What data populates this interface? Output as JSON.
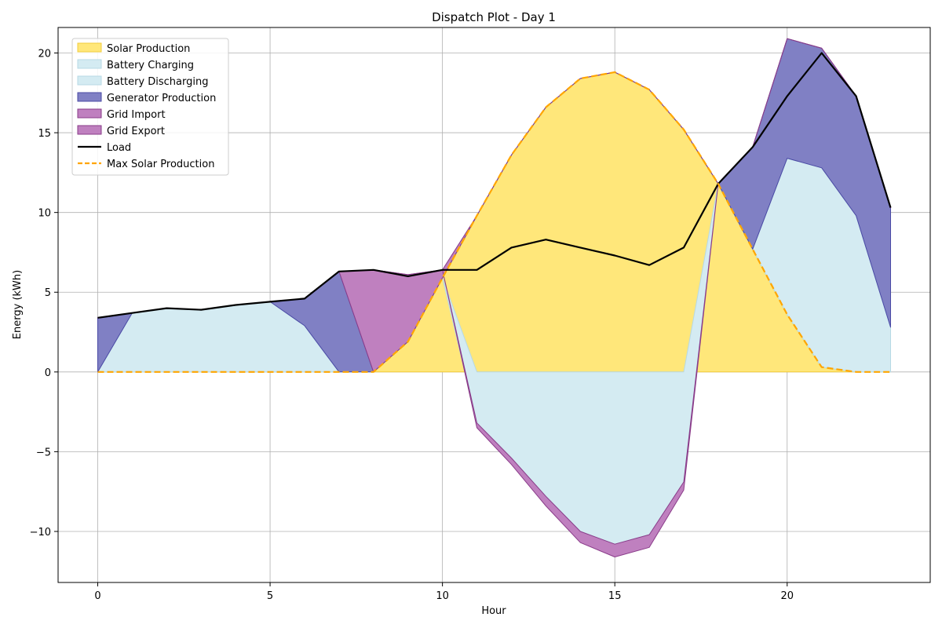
{
  "chart_data": {
    "type": "area",
    "title": "Dispatch Plot - Day 1",
    "xlabel": "Hour",
    "ylabel": "Energy (kWh)",
    "xlim": [
      -1.15,
      24.15
    ],
    "ylim": [
      -13.2,
      21.6
    ],
    "xticks": [
      0,
      5,
      10,
      15,
      20
    ],
    "yticks": [
      -10,
      -5,
      0,
      5,
      10,
      15,
      20
    ],
    "grid": true,
    "legend_position": "upper-left",
    "x": [
      0,
      1,
      2,
      3,
      4,
      5,
      6,
      7,
      8,
      9,
      10,
      11,
      12,
      13,
      14,
      15,
      16,
      17,
      18,
      19,
      20,
      21,
      22,
      23
    ],
    "series": [
      {
        "name": "Solar Production",
        "kind": "area",
        "color": "#ffe77a",
        "edge": "#f2cc3c",
        "values": [
          0,
          0,
          0,
          0,
          0,
          0,
          0,
          0,
          0,
          1.9,
          5.9,
          9.8,
          13.6,
          16.6,
          18.4,
          18.8,
          17.7,
          15.2,
          11.8,
          7.7,
          3.6,
          0.3,
          0,
          0
        ]
      },
      {
        "name": "Battery Charging",
        "kind": "area",
        "color": "#d4ebf2",
        "edge": "#b7d9e4",
        "values": [
          0,
          0,
          0,
          0,
          0,
          0,
          0,
          0,
          0,
          0,
          0,
          -3.2,
          -5.4,
          -7.8,
          -10.0,
          -10.8,
          -10.2,
          -6.9,
          0,
          0,
          0,
          0,
          0,
          0
        ]
      },
      {
        "name": "Battery Discharging",
        "kind": "area",
        "color": "#d4ebf2",
        "edge": "#b7d9e4",
        "values": [
          0,
          3.7,
          4.0,
          3.9,
          4.2,
          4.4,
          2.9,
          0,
          0,
          0,
          0,
          0,
          0,
          0,
          0,
          0,
          0,
          0,
          0,
          0,
          9.8,
          12.5,
          9.8,
          2.8
        ]
      },
      {
        "name": "Generator Production",
        "kind": "area",
        "color": "#8080c4",
        "edge": "#4a4aa5",
        "values": [
          3.4,
          0,
          0,
          0,
          0,
          0,
          1.7,
          6.3,
          0,
          0,
          0,
          0,
          0,
          0,
          0,
          0,
          0,
          0,
          0,
          6.4,
          7.5,
          7.5,
          7.5,
          7.5
        ]
      },
      {
        "name": "Grid Import",
        "kind": "area",
        "color": "#bf80bf",
        "edge": "#8a3c8a",
        "values": [
          0,
          0,
          0,
          0,
          0,
          0,
          0,
          0,
          6.4,
          4.2,
          0.5,
          0,
          0,
          0,
          0,
          0,
          0,
          0,
          0,
          0,
          0,
          0,
          0,
          0
        ]
      },
      {
        "name": "Grid Export",
        "kind": "area",
        "color": "#bf80bf",
        "edge": "#8a3c8a",
        "values": [
          0,
          0,
          0,
          0,
          0,
          0,
          0,
          0,
          0,
          0,
          0,
          -0.3,
          -0.4,
          -0.6,
          -0.7,
          -0.8,
          -0.8,
          -0.5,
          0,
          0,
          0,
          0,
          0,
          0
        ]
      },
      {
        "name": "Load",
        "kind": "line",
        "color": "#000000",
        "values": [
          3.4,
          3.7,
          4.0,
          3.9,
          4.2,
          4.4,
          4.6,
          6.3,
          6.4,
          6.0,
          6.4,
          6.4,
          7.8,
          8.3,
          7.8,
          7.3,
          6.7,
          7.8,
          11.8,
          14.1,
          17.3,
          20.0,
          17.3,
          10.3
        ]
      },
      {
        "name": "Max Solar Production",
        "kind": "dashed-line",
        "color": "#ffa500",
        "values": [
          0,
          0,
          0,
          0,
          0,
          0,
          0,
          0,
          0,
          1.9,
          5.9,
          9.8,
          13.6,
          16.6,
          18.4,
          18.8,
          17.7,
          15.2,
          11.8,
          7.7,
          3.6,
          0.3,
          0,
          0
        ]
      }
    ]
  }
}
